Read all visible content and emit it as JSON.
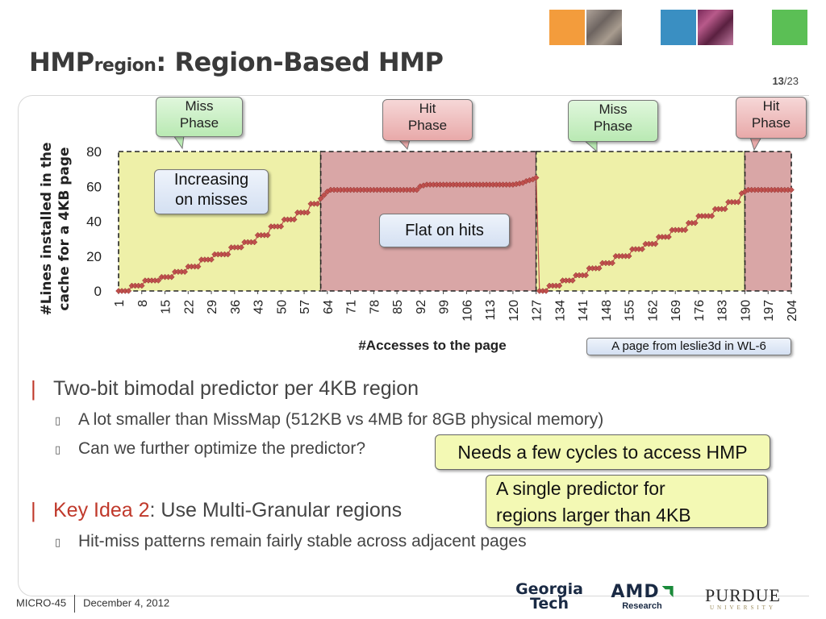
{
  "title": {
    "main": "HMP",
    "sub": "region",
    "rest": ": Region-Based HMP"
  },
  "page_number": {
    "current": "13",
    "total": "/23"
  },
  "colors": {
    "miss_phase_bg": "#eef0a8",
    "hit_phase_bg": "#d9a6a6",
    "marker": "#c0504d",
    "accent": "#c0392b"
  },
  "callouts": {
    "miss1": "Miss\nPhase",
    "hit1": "Hit\nPhase",
    "miss2": "Miss\nPhase",
    "hit2": "Hit\nPhase",
    "increasing": "Increasing\non misses",
    "flat": "Flat on hits",
    "source": "A page from leslie3d in WL-6",
    "cycles": "Needs a few cycles to access HMP",
    "single": "A single predictor for\nregions larger than 4KB"
  },
  "chart_data": {
    "type": "line",
    "title": "",
    "xlabel": "#Accesses to the page",
    "ylabel": "#Lines installed in the cache for a 4KB page",
    "ylim": [
      0,
      80
    ],
    "yticks": [
      0,
      20,
      40,
      60,
      80
    ],
    "xlim": [
      1,
      204
    ],
    "xticks": [
      1,
      8,
      15,
      22,
      29,
      36,
      43,
      50,
      57,
      64,
      71,
      78,
      85,
      92,
      99,
      106,
      113,
      120,
      127,
      134,
      141,
      148,
      155,
      162,
      169,
      176,
      183,
      190,
      197,
      204
    ],
    "phases": [
      {
        "label": "Miss Phase",
        "x": [
          1,
          62
        ]
      },
      {
        "label": "Hit Phase",
        "x": [
          62,
          127
        ]
      },
      {
        "label": "Miss Phase",
        "x": [
          127,
          190
        ]
      },
      {
        "label": "Hit Phase",
        "x": [
          190,
          204
        ]
      }
    ],
    "series": [
      {
        "name": "",
        "points": [
          [
            1,
            0
          ],
          [
            4,
            0
          ],
          [
            5,
            3
          ],
          [
            8,
            3
          ],
          [
            9,
            6
          ],
          [
            13,
            6
          ],
          [
            14,
            8
          ],
          [
            17,
            8
          ],
          [
            18,
            11
          ],
          [
            21,
            11
          ],
          [
            22,
            14
          ],
          [
            25,
            14
          ],
          [
            26,
            18
          ],
          [
            29,
            18
          ],
          [
            30,
            21
          ],
          [
            34,
            21
          ],
          [
            35,
            25
          ],
          [
            38,
            25
          ],
          [
            39,
            28
          ],
          [
            42,
            28
          ],
          [
            43,
            32
          ],
          [
            46,
            32
          ],
          [
            47,
            37
          ],
          [
            50,
            37
          ],
          [
            51,
            41
          ],
          [
            54,
            41
          ],
          [
            55,
            45
          ],
          [
            58,
            45
          ],
          [
            59,
            50
          ],
          [
            61,
            50
          ],
          [
            62,
            53
          ],
          [
            63,
            55
          ],
          [
            64,
            57
          ],
          [
            65,
            58
          ],
          [
            88,
            58
          ],
          [
            91,
            58
          ],
          [
            92,
            60
          ],
          [
            94,
            61
          ],
          [
            120,
            61
          ],
          [
            123,
            62
          ],
          [
            124,
            63
          ],
          [
            126,
            64
          ],
          [
            127,
            65
          ],
          [
            128,
            0
          ],
          [
            130,
            0
          ],
          [
            131,
            3
          ],
          [
            134,
            3
          ],
          [
            135,
            6
          ],
          [
            138,
            6
          ],
          [
            139,
            9
          ],
          [
            142,
            9
          ],
          [
            143,
            13
          ],
          [
            146,
            13
          ],
          [
            147,
            16
          ],
          [
            150,
            16
          ],
          [
            151,
            20
          ],
          [
            155,
            20
          ],
          [
            156,
            24
          ],
          [
            159,
            24
          ],
          [
            160,
            27
          ],
          [
            163,
            27
          ],
          [
            164,
            31
          ],
          [
            167,
            31
          ],
          [
            168,
            35
          ],
          [
            172,
            35
          ],
          [
            173,
            39
          ],
          [
            175,
            39
          ],
          [
            176,
            43
          ],
          [
            180,
            43
          ],
          [
            181,
            47
          ],
          [
            184,
            47
          ],
          [
            185,
            51
          ],
          [
            188,
            51
          ],
          [
            189,
            56
          ],
          [
            190,
            57
          ],
          [
            191,
            58
          ],
          [
            204,
            58
          ]
        ]
      }
    ]
  },
  "bullets": {
    "b1": "Two-bit bimodal predictor per 4KB region",
    "b1a": "A lot smaller than MissMap (512KB vs 4MB for 8GB physical memory)",
    "b1b": "Can we further optimize the predictor?",
    "b2_prefix": "Key Idea 2",
    "b2_rest": ": Use Multi-Granular regions",
    "b2a": "Hit-miss patterns remain fairly stable across adjacent pages",
    "bar_glyph": "|",
    "sub_glyph": "▯"
  },
  "footer": {
    "conference": "MICRO-45",
    "date": "December 4, 2012"
  },
  "logos": {
    "gt1": "Georgia",
    "gt2": "Tech",
    "amd1": "AMD",
    "amd2": "Research",
    "purdue1": "PURDUE",
    "purdue2": "UNIVERSITY"
  },
  "icons": {
    "gt": "georgia-tech-logo",
    "amd": "amd-arrow-icon",
    "purdue": "purdue-logo"
  }
}
